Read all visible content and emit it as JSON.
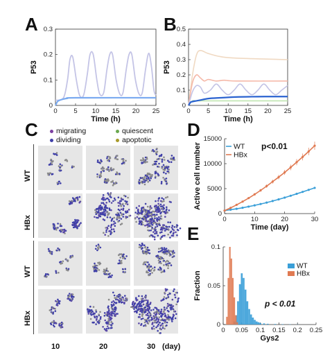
{
  "panels": {
    "A": "A",
    "B": "B",
    "C": "C",
    "D": "D",
    "E": "E"
  },
  "colors": {
    "blue": "#2a62d0",
    "lightblue": "#7aaaf0",
    "lavender": "#c4c4e6",
    "pink": "#f5b8a8",
    "lightgreen": "#bfe5b0",
    "peach": "#f0d9c2",
    "wt": "#3a9fd8",
    "hbx": "#e07a52",
    "purple": "#5b49a8",
    "grey": "#8a8a8a",
    "tile": "#e6e6e6",
    "migrating": "#7b3fa0",
    "dividing": "#3f3fa8",
    "quiescent": "#6aa84f",
    "apoptotic": "#a89a2a"
  },
  "chart_data": [
    {
      "panel": "A",
      "type": "line",
      "xlabel": "Time (h)",
      "ylabel": "P53",
      "xlim": [
        0,
        25
      ],
      "ylim": [
        0,
        0.3
      ],
      "xticks": [
        "0",
        "5",
        "10",
        "15",
        "20",
        "25"
      ],
      "yticks": [
        "0",
        "0.1",
        "0.2",
        "0.3"
      ],
      "series": [
        {
          "style": "oscillating",
          "color": "lavender",
          "x": [
            0,
            2,
            3,
            3.6,
            4.3,
            5.2,
            6,
            7,
            7.9,
            8.6,
            9.4,
            10.3,
            11,
            12,
            12.8,
            13.5,
            14.2,
            15.1,
            16,
            16.8,
            17.6,
            18.3,
            19,
            19.9,
            20.8,
            21.6,
            22.4,
            23.2,
            23.9,
            24.5,
            25
          ],
          "y": [
            0.02,
            0.03,
            0.1,
            0.18,
            0.19,
            0.1,
            0.04,
            0.04,
            0.12,
            0.2,
            0.2,
            0.1,
            0.045,
            0.05,
            0.14,
            0.2,
            0.2,
            0.1,
            0.045,
            0.05,
            0.14,
            0.2,
            0.2,
            0.1,
            0.045,
            0.05,
            0.14,
            0.205,
            0.15,
            0.06,
            0.04
          ]
        },
        {
          "style": "flat",
          "color": "lightblue",
          "x": [
            0,
            0.5,
            1,
            2,
            3,
            5,
            25
          ],
          "y": [
            0.0,
            0.015,
            0.02,
            0.025,
            0.028,
            0.03,
            0.03
          ]
        }
      ]
    },
    {
      "panel": "B",
      "type": "line",
      "xlabel": "Time (h)",
      "ylabel": "P53",
      "xlim": [
        0,
        25
      ],
      "ylim": [
        0,
        0.5
      ],
      "xticks": [
        "0",
        "5",
        "10",
        "15",
        "20",
        "25"
      ],
      "yticks": [
        "0",
        "0.1",
        "0.2",
        "0.3",
        "0.4",
        "0.5"
      ],
      "series": [
        {
          "color": "peach",
          "x": [
            0,
            1,
            2,
            3,
            5,
            8,
            12,
            25
          ],
          "y": [
            0,
            0.2,
            0.33,
            0.36,
            0.34,
            0.32,
            0.31,
            0.3
          ]
        },
        {
          "color": "pink",
          "x": [
            0,
            1,
            2,
            3,
            4,
            5,
            7,
            9,
            12,
            25
          ],
          "y": [
            0,
            0.15,
            0.2,
            0.18,
            0.16,
            0.17,
            0.16,
            0.165,
            0.16,
            0.16
          ]
        },
        {
          "color": "lavender",
          "x": [
            0,
            1,
            2,
            3,
            4,
            5.5,
            7,
            8.5,
            10,
            11.5,
            13,
            14.5,
            16,
            17.5,
            19,
            20.5,
            22,
            23.5,
            25
          ],
          "y": [
            0,
            0.09,
            0.13,
            0.12,
            0.08,
            0.1,
            0.14,
            0.1,
            0.07,
            0.1,
            0.14,
            0.1,
            0.07,
            0.1,
            0.14,
            0.1,
            0.07,
            0.1,
            0.13
          ]
        },
        {
          "color": "lightgreen",
          "x": [
            0,
            1,
            2,
            4,
            25
          ],
          "y": [
            0,
            0.03,
            0.03,
            0.03,
            0.03
          ]
        },
        {
          "color": "blue",
          "x": [
            0,
            0.5,
            1,
            2,
            3,
            5,
            8,
            12,
            16,
            20,
            25
          ],
          "y": [
            0,
            0.02,
            0.025,
            0.03,
            0.035,
            0.045,
            0.05,
            0.055,
            0.057,
            0.058,
            0.058
          ]
        }
      ]
    },
    {
      "panel": "D",
      "type": "line",
      "xlabel": "Time (day)",
      "ylabel": "Active cell number",
      "xlim": [
        0,
        30
      ],
      "ylim": [
        0,
        15000
      ],
      "xticks": [
        "0",
        "10",
        "20",
        "30"
      ],
      "yticks": [
        "0",
        "5000",
        "10000",
        "15000"
      ],
      "annotation": "p<0.01",
      "legend": [
        "WT",
        "HBx"
      ],
      "series": [
        {
          "name": "WT",
          "color": "wt",
          "x": [
            0,
            2,
            4,
            6,
            8,
            10,
            12,
            14,
            16,
            18,
            20,
            22,
            24,
            26,
            28,
            30
          ],
          "y": [
            600,
            780,
            960,
            1170,
            1400,
            1650,
            1920,
            2200,
            2520,
            2850,
            3200,
            3570,
            3960,
            4350,
            4750,
            5150
          ]
        },
        {
          "name": "HBx",
          "color": "hbx",
          "x": [
            0,
            2,
            4,
            6,
            8,
            10,
            12,
            14,
            16,
            18,
            20,
            22,
            24,
            26,
            28,
            30
          ],
          "y": [
            600,
            1150,
            1750,
            2400,
            3100,
            3850,
            4650,
            5500,
            6400,
            7300,
            8250,
            9250,
            10300,
            11350,
            12450,
            13600
          ]
        }
      ]
    },
    {
      "panel": "E",
      "type": "bar",
      "xlabel": "Gys2",
      "ylabel": "Fraction",
      "xlim": [
        0,
        0.25
      ],
      "ylim": [
        0,
        0.1
      ],
      "xticks": [
        "0",
        "0.05",
        "0.1",
        "0.15",
        "0.2",
        "0.25"
      ],
      "yticks": [
        "0",
        "0.05",
        "0.1"
      ],
      "annotation": "p < 0.01",
      "legend": [
        "WT",
        "HBx"
      ],
      "series": [
        {
          "name": "WT",
          "color": "wt",
          "x": [
            0.03,
            0.035,
            0.04,
            0.045,
            0.05,
            0.055,
            0.06,
            0.065,
            0.07,
            0.075,
            0.08,
            0.085,
            0.09,
            0.095,
            0.1,
            0.11,
            0.12,
            0.14,
            0.16,
            0.18,
            0.2
          ],
          "y": [
            0.004,
            0.012,
            0.03,
            0.052,
            0.066,
            0.06,
            0.045,
            0.03,
            0.02,
            0.013,
            0.009,
            0.006,
            0.004,
            0.003,
            0.002,
            0.0015,
            0.001,
            0.0007,
            0.0005,
            0.0003,
            0.0002
          ]
        },
        {
          "name": "HBx",
          "color": "hbx",
          "x": [
            0.01,
            0.014,
            0.018,
            0.022,
            0.026,
            0.03,
            0.034,
            0.038
          ],
          "y": [
            0.01,
            0.06,
            0.1,
            0.085,
            0.06,
            0.035,
            0.012,
            0.003
          ]
        }
      ]
    }
  ],
  "panel_c": {
    "legend": [
      {
        "label": "migrating",
        "color": "migrating"
      },
      {
        "label": "quiescent",
        "color": "quiescent"
      },
      {
        "label": "dividing",
        "color": "dividing"
      },
      {
        "label": "apoptotic",
        "color": "apoptotic"
      }
    ],
    "rows": [
      "WT",
      "HBx",
      "WT",
      "HBx"
    ],
    "times": [
      "10",
      "20",
      "30"
    ],
    "time_unit": "(day)"
  }
}
